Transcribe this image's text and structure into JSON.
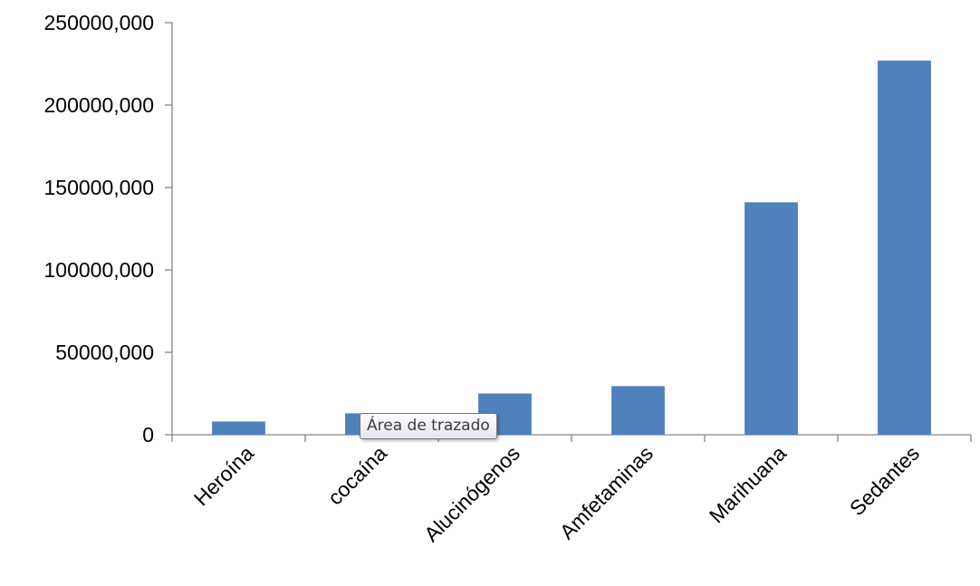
{
  "chart_data": {
    "type": "bar",
    "categories": [
      "Heroína",
      "cocaína",
      "Alucinógenos",
      "Amfetaminas",
      "Marihuana",
      "Sedantes"
    ],
    "values": [
      8000000,
      13000000,
      25000000,
      29500000,
      141000000,
      227000000
    ],
    "title": "",
    "xlabel": "",
    "ylabel": "",
    "ylim": [
      0,
      250000000
    ],
    "yticks": [
      0,
      50000000,
      100000000,
      150000000,
      200000000,
      250000000
    ],
    "ytick_labels": [
      "0",
      "50000,000",
      "100000,000",
      "150000,000",
      "200000,000",
      "250000,000"
    ],
    "bar_color": "#4f81bd",
    "grid": false,
    "legend": "none"
  },
  "tooltip": {
    "text": "Área de trazado"
  }
}
